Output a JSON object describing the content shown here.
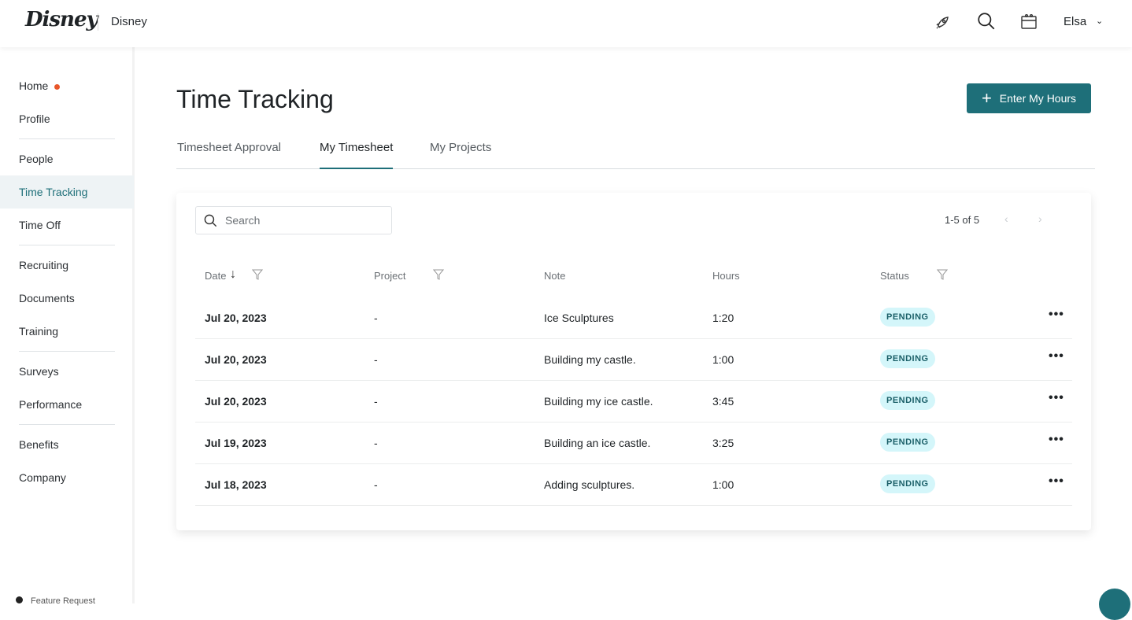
{
  "header": {
    "logo": "Disney",
    "company": "Disney",
    "user": "Elsa",
    "icons": [
      "rocket-icon",
      "search-icon",
      "calendar-icon",
      "chevron-down-icon"
    ]
  },
  "sidebar": {
    "items": [
      {
        "label": "Home"
      },
      {
        "label": "Profile"
      },
      {
        "label": "People"
      },
      {
        "label": "Time Tracking"
      },
      {
        "label": "Time Off"
      },
      {
        "label": "Recruiting"
      },
      {
        "label": "Documents"
      },
      {
        "label": "Training"
      },
      {
        "label": "Surveys"
      },
      {
        "label": "Performance"
      },
      {
        "label": "Benefits"
      },
      {
        "label": "Company"
      }
    ],
    "active": "Time Tracking",
    "footer": "Feature Request"
  },
  "page": {
    "title": "Time Tracking",
    "enter_button": "Enter My Hours",
    "tabs": [
      "Timesheet Approval",
      "My Timesheet",
      "My Projects"
    ],
    "active_tab": "My Timesheet"
  },
  "table": {
    "search_placeholder": "Search",
    "pagination": "1-5 of 5",
    "columns": [
      "Date",
      "Project",
      "Note",
      "Hours",
      "Status"
    ],
    "rows": [
      {
        "date": "Jul 20, 2023",
        "project": "-",
        "note": "Ice Sculptures",
        "hours": "1:20",
        "status": "PENDING"
      },
      {
        "date": "Jul 20, 2023",
        "project": "-",
        "note": "Building my castle.",
        "hours": "1:00",
        "status": "PENDING"
      },
      {
        "date": "Jul 20, 2023",
        "project": "-",
        "note": "Building my ice castle.",
        "hours": "3:45",
        "status": "PENDING"
      },
      {
        "date": "Jul 19, 2023",
        "project": "-",
        "note": "Building an ice castle.",
        "hours": "3:25",
        "status": "PENDING"
      },
      {
        "date": "Jul 18, 2023",
        "project": "-",
        "note": "Adding sculptures.",
        "hours": "1:00",
        "status": "PENDING"
      }
    ]
  },
  "colors": {
    "accent": "#1e6f79",
    "badge_bg": "#d4f6fa",
    "notification": "#e8562a"
  }
}
